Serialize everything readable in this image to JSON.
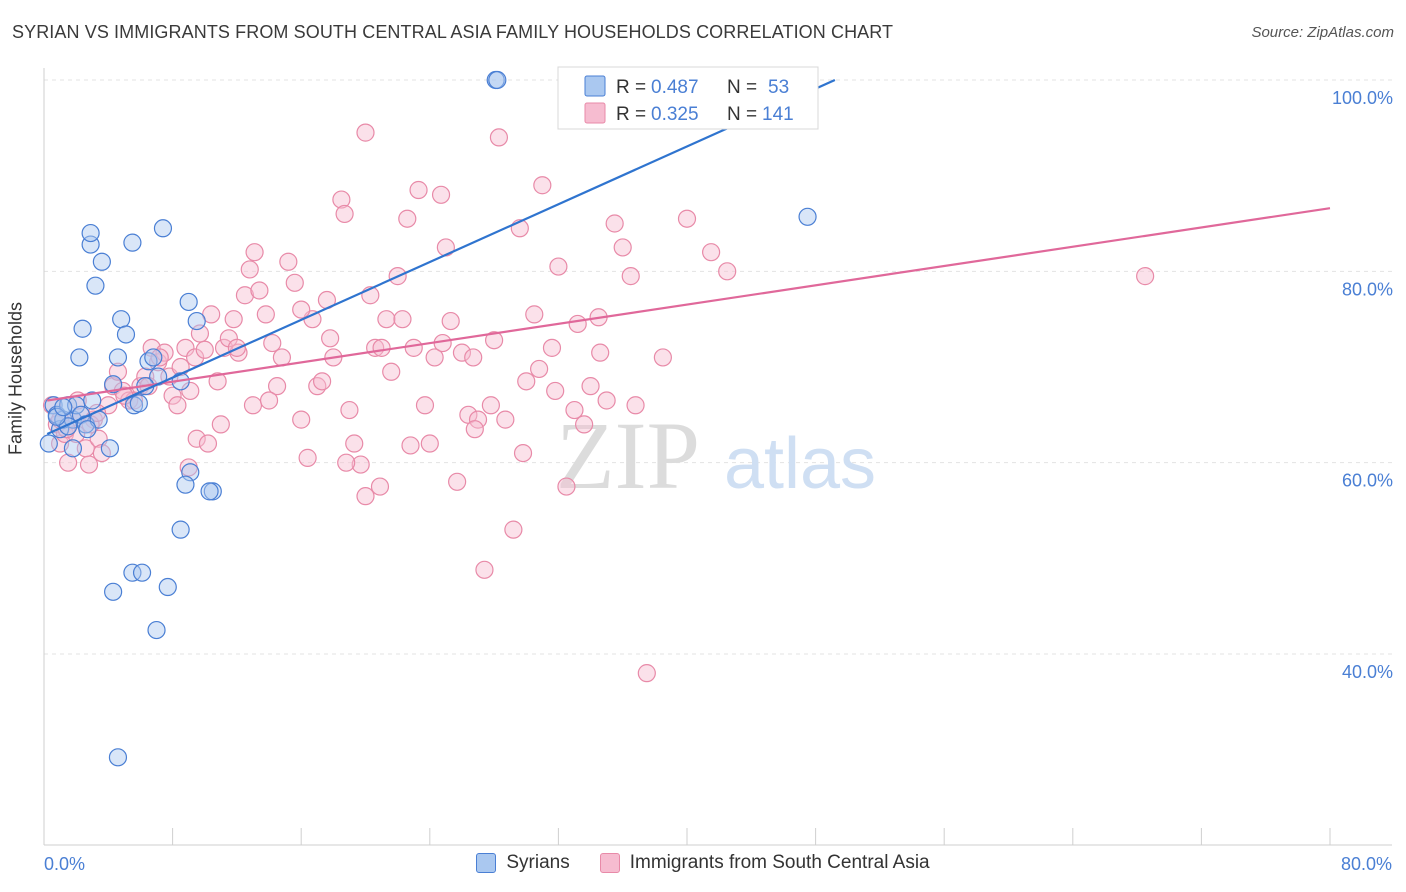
{
  "header": {
    "title": "SYRIAN VS IMMIGRANTS FROM SOUTH CENTRAL ASIA FAMILY HOUSEHOLDS CORRELATION CHART",
    "source": "Source: ZipAtlas.com"
  },
  "watermark": {
    "zip": "ZIP",
    "atlas": "atlas"
  },
  "colors": {
    "blue": "#4a7fd4",
    "blue_fill": "#aac8f0",
    "blue_line": "#2f74cf",
    "pink": "#e88aa8",
    "pink_fill": "#f6bcd0",
    "pink_line": "#e0689a",
    "axis_label": "#4a7fd4",
    "grid": "#e3e3e3"
  },
  "legend": {
    "rows": [
      {
        "r_label": "R = ",
        "r_value": "0.487",
        "n_label": "N = ",
        "n_value": "53"
      },
      {
        "r_label": "R = ",
        "r_value": "0.325",
        "n_label": "N = ",
        "n_value": "141"
      }
    ]
  },
  "chart_data": {
    "type": "scatter",
    "title": "SYRIAN VS IMMIGRANTS FROM SOUTH CENTRAL ASIA FAMILY HOUSEHOLDS CORRELATION CHART",
    "xlabel": "",
    "ylabel": "Family Households",
    "xlim": [
      0,
      80
    ],
    "ylim": [
      22,
      103
    ],
    "x_ticks_labels": [
      "0.0%",
      "80.0%"
    ],
    "y_ticks": [
      40,
      60,
      80,
      100
    ],
    "y_tick_labels": [
      "40.0%",
      "60.0%",
      "80.0%",
      "100.0%"
    ],
    "grid": true,
    "legend_position": "top-center",
    "series": [
      {
        "name": "Syrians",
        "R": 0.487,
        "N": 53,
        "trend": {
          "x0": 0.2,
          "y0": 63.0,
          "x1": 49.2,
          "y1": 100.0
        },
        "points": [
          [
            0.3,
            62
          ],
          [
            0.6,
            66
          ],
          [
            0.8,
            65
          ],
          [
            1.0,
            63.5
          ],
          [
            1.2,
            64.5
          ],
          [
            1.5,
            66
          ],
          [
            1.8,
            64.5
          ],
          [
            2.0,
            66
          ],
          [
            2.3,
            65
          ],
          [
            2.6,
            64
          ],
          [
            1.8,
            61.5
          ],
          [
            2.2,
            71
          ],
          [
            2.4,
            74
          ],
          [
            3.2,
            78.5
          ],
          [
            3.6,
            81
          ],
          [
            2.9,
            82.8
          ],
          [
            2.9,
            84
          ],
          [
            4.6,
            71
          ],
          [
            4.8,
            75
          ],
          [
            5.5,
            83
          ],
          [
            5.6,
            66
          ],
          [
            5.1,
            73.4
          ],
          [
            6.5,
            70.6
          ],
          [
            6.8,
            71
          ],
          [
            7.1,
            69
          ],
          [
            7.4,
            84.5
          ],
          [
            8.5,
            68.5
          ],
          [
            9.0,
            76.8
          ],
          [
            9.5,
            74.8
          ],
          [
            10.5,
            57
          ],
          [
            10.3,
            57
          ],
          [
            9.1,
            59
          ],
          [
            8.8,
            57.7
          ],
          [
            8.5,
            53
          ],
          [
            4.1,
            61.5
          ],
          [
            5.5,
            48.5
          ],
          [
            6.1,
            48.5
          ],
          [
            7.7,
            47
          ],
          [
            4.3,
            46.5
          ],
          [
            7.0,
            42.5
          ],
          [
            4.6,
            29.2
          ],
          [
            28.1,
            100
          ],
          [
            28.2,
            100
          ],
          [
            47.5,
            85.7
          ],
          [
            4.3,
            68.2
          ],
          [
            3.4,
            64.5
          ],
          [
            6.3,
            68
          ],
          [
            1.5,
            63.8
          ],
          [
            0.8,
            64.8
          ],
          [
            1.2,
            65.8
          ],
          [
            3.0,
            66.5
          ],
          [
            2.7,
            63.5
          ],
          [
            5.9,
            66.2
          ]
        ]
      },
      {
        "name": "Immigrants from South Central Asia",
        "R": 0.325,
        "N": 141,
        "trend": {
          "x0": 0.2,
          "y0": 66.5,
          "x1": 80.0,
          "y1": 86.6
        },
        "points": [
          [
            0.5,
            66
          ],
          [
            0.8,
            64
          ],
          [
            1.0,
            62
          ],
          [
            1.3,
            63
          ],
          [
            1.5,
            60
          ],
          [
            1.8,
            64.5
          ],
          [
            2.0,
            63
          ],
          [
            2.3,
            65
          ],
          [
            2.6,
            61.5
          ],
          [
            2.8,
            59.8
          ],
          [
            3.1,
            64.5
          ],
          [
            3.4,
            62.5
          ],
          [
            3.6,
            61
          ],
          [
            4.0,
            66
          ],
          [
            4.3,
            68
          ],
          [
            4.6,
            69.5
          ],
          [
            4.9,
            67.5
          ],
          [
            5.3,
            66.5
          ],
          [
            5.6,
            66.5
          ],
          [
            6.0,
            68
          ],
          [
            6.3,
            69
          ],
          [
            6.7,
            72
          ],
          [
            7.1,
            70.5
          ],
          [
            7.5,
            71.5
          ],
          [
            7.8,
            69
          ],
          [
            8.0,
            67
          ],
          [
            8.3,
            66
          ],
          [
            8.5,
            70
          ],
          [
            8.8,
            72
          ],
          [
            9.1,
            67.5
          ],
          [
            9.4,
            71
          ],
          [
            9.7,
            73.5
          ],
          [
            10.0,
            71.8
          ],
          [
            10.4,
            75.5
          ],
          [
            10.8,
            68.5
          ],
          [
            11.2,
            72
          ],
          [
            11.5,
            73
          ],
          [
            11.8,
            75
          ],
          [
            12.1,
            71.5
          ],
          [
            12.5,
            77.5
          ],
          [
            12.8,
            80.2
          ],
          [
            13.1,
            82
          ],
          [
            13.4,
            78
          ],
          [
            13.8,
            75.5
          ],
          [
            14.2,
            72.5
          ],
          [
            14.5,
            68
          ],
          [
            14.8,
            71
          ],
          [
            15.2,
            81
          ],
          [
            15.6,
            78.8
          ],
          [
            16.0,
            64.5
          ],
          [
            16.4,
            60.5
          ],
          [
            16.7,
            75
          ],
          [
            17.0,
            68
          ],
          [
            17.3,
            68.5
          ],
          [
            17.6,
            77
          ],
          [
            18.0,
            71
          ],
          [
            18.5,
            87.5
          ],
          [
            18.7,
            86
          ],
          [
            19.0,
            65.5
          ],
          [
            19.3,
            62
          ],
          [
            19.7,
            59.8
          ],
          [
            20.0,
            56.5
          ],
          [
            20.3,
            77.5
          ],
          [
            20.6,
            72
          ],
          [
            20.9,
            57.5
          ],
          [
            21.3,
            75
          ],
          [
            21.6,
            69.5
          ],
          [
            22.0,
            79.5
          ],
          [
            22.3,
            75
          ],
          [
            22.6,
            85.5
          ],
          [
            23.0,
            72
          ],
          [
            23.3,
            88.5
          ],
          [
            23.7,
            66
          ],
          [
            24.0,
            62
          ],
          [
            24.3,
            71
          ],
          [
            24.7,
            88
          ],
          [
            25.0,
            82.5
          ],
          [
            25.3,
            74.8
          ],
          [
            25.7,
            58
          ],
          [
            26.0,
            71.5
          ],
          [
            26.4,
            65
          ],
          [
            26.7,
            71
          ],
          [
            27.0,
            64.5
          ],
          [
            27.4,
            48.8
          ],
          [
            27.8,
            66
          ],
          [
            28.3,
            94
          ],
          [
            28.7,
            64.5
          ],
          [
            29.2,
            53
          ],
          [
            29.6,
            84.5
          ],
          [
            30.0,
            68.5
          ],
          [
            30.5,
            75.5
          ],
          [
            31.0,
            89
          ],
          [
            31.6,
            72
          ],
          [
            32.0,
            80.5
          ],
          [
            32.5,
            57.5
          ],
          [
            33.0,
            65.5
          ],
          [
            33.6,
            64
          ],
          [
            34.0,
            68
          ],
          [
            34.6,
            71.5
          ],
          [
            35.0,
            66.5
          ],
          [
            35.5,
            85
          ],
          [
            36.0,
            82.5
          ],
          [
            36.5,
            79.5
          ],
          [
            37.0,
            97
          ],
          [
            37.5,
            38
          ],
          [
            38.0,
            97
          ],
          [
            38.5,
            71
          ],
          [
            40.0,
            85.5
          ],
          [
            41.5,
            82
          ],
          [
            42.5,
            80
          ],
          [
            68.5,
            79.5
          ],
          [
            12.0,
            72
          ],
          [
            16.0,
            76
          ],
          [
            9.0,
            59.5
          ],
          [
            20.0,
            94.5
          ],
          [
            1.0,
            64.5
          ],
          [
            1.4,
            63.5
          ],
          [
            2.1,
            66.5
          ],
          [
            2.9,
            64
          ],
          [
            3.3,
            65.2
          ],
          [
            5.0,
            67
          ],
          [
            6.5,
            68
          ],
          [
            7.2,
            71
          ],
          [
            9.5,
            62.5
          ],
          [
            10.2,
            62
          ],
          [
            11.0,
            64
          ],
          [
            13.0,
            66
          ],
          [
            14.0,
            66.5
          ],
          [
            17.8,
            73
          ],
          [
            18.8,
            60
          ],
          [
            21.0,
            72
          ],
          [
            22.8,
            61.8
          ],
          [
            24.8,
            72.5
          ],
          [
            26.8,
            63.5
          ],
          [
            28.0,
            72.8
          ],
          [
            29.8,
            61
          ],
          [
            30.8,
            69.8
          ],
          [
            31.8,
            67.5
          ],
          [
            33.2,
            74.5
          ],
          [
            34.5,
            75.2
          ],
          [
            36.8,
            66
          ]
        ]
      }
    ]
  },
  "bottom_legend": {
    "items": [
      {
        "label": "Syrians"
      },
      {
        "label": "Immigrants from South Central Asia"
      }
    ]
  }
}
